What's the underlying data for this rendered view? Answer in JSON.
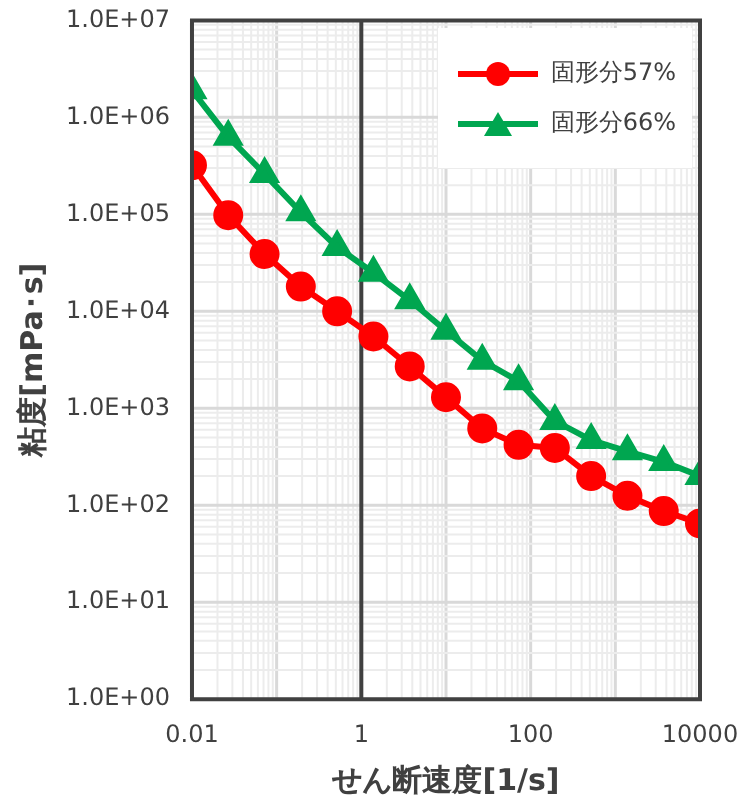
{
  "chart_data": {
    "type": "line",
    "xlabel": "せん断速度[1/s]",
    "ylabel": "粘度[mPa･s]",
    "log": "xy",
    "grid": true,
    "legend": "top right",
    "line_style": "solid",
    "xlim": [
      0.01,
      10000
    ],
    "xticks": [
      0.01,
      1,
      100,
      10000
    ],
    "ylim": [
      1,
      10000000
    ],
    "yticks": [
      {
        "value": 1,
        "label": "1.0E+00"
      },
      {
        "value": 10,
        "label": "1.0E+01"
      },
      {
        "value": 100,
        "label": "1.0E+02"
      },
      {
        "value": 1000,
        "label": "1.0E+03"
      },
      {
        "value": 10000,
        "label": "1.0E+04"
      },
      {
        "value": 100000,
        "label": "1.0E+05"
      },
      {
        "value": 1000000,
        "label": "1.0E+06"
      },
      {
        "value": 10000000,
        "label": "1.0E+07"
      }
    ],
    "x": [
      0.01,
      0.0268,
      0.072,
      0.193,
      0.518,
      1.39,
      3.73,
      10,
      26.8,
      72,
      193,
      518,
      1390,
      3730,
      10000
    ],
    "ref_lines": [
      {
        "axis": "x",
        "value": 1,
        "color": "#404040"
      }
    ],
    "series": [
      {
        "name": "固形分57%",
        "color": "#ff0000",
        "marker": "circle",
        "values": [
          320000,
          98000,
          39000,
          18000,
          10000,
          5500,
          2700,
          1300,
          620,
          420,
          390,
          200,
          125,
          87,
          65
        ]
      },
      {
        "name": "固形分66%",
        "color": "#00a650",
        "marker": "triangle",
        "values": [
          1900000,
          630000,
          260000,
          105000,
          46000,
          25000,
          13000,
          6300,
          3100,
          1900,
          740,
          470,
          360,
          280,
          200
        ]
      }
    ]
  }
}
